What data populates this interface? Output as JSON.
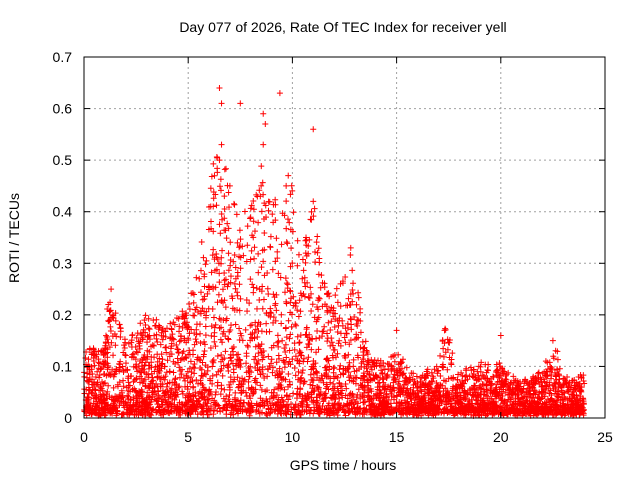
{
  "chart_data": {
    "type": "scatter",
    "title": "Day 077 of 2026, Rate Of TEC Index for receiver yell",
    "xlabel": "GPS time / hours",
    "ylabel": "ROTI / TECUs",
    "xlim": [
      0,
      25
    ],
    "ylim": [
      0,
      0.7
    ],
    "xticks": [
      0,
      5,
      10,
      15,
      20,
      25
    ],
    "yticks": [
      0,
      0.1,
      0.2,
      0.3,
      0.4,
      0.5,
      0.6,
      0.7
    ],
    "xtick_labels": [
      "0",
      "5",
      "10",
      "15",
      "20",
      "25"
    ],
    "ytick_labels": [
      "0",
      "0.1",
      "0.2",
      "0.3",
      "0.4",
      "0.5",
      "0.6",
      "0.7"
    ],
    "grid": true,
    "marker": "+",
    "color": "#ff0000",
    "series": [
      {
        "name": "ROTI",
        "envelope": [
          {
            "x": 0.0,
            "ymax": 0.12
          },
          {
            "x": 1.0,
            "ymax": 0.13
          },
          {
            "x": 1.2,
            "ymax": 0.25
          },
          {
            "x": 2.0,
            "ymax": 0.14
          },
          {
            "x": 3.0,
            "ymax": 0.19
          },
          {
            "x": 4.0,
            "ymax": 0.17
          },
          {
            "x": 5.0,
            "ymax": 0.21
          },
          {
            "x": 5.5,
            "ymax": 0.28
          },
          {
            "x": 6.0,
            "ymax": 0.45
          },
          {
            "x": 6.5,
            "ymax": 0.52
          },
          {
            "x": 7.0,
            "ymax": 0.45
          },
          {
            "x": 7.5,
            "ymax": 0.38
          },
          {
            "x": 8.0,
            "ymax": 0.4
          },
          {
            "x": 8.5,
            "ymax": 0.5
          },
          {
            "x": 9.0,
            "ymax": 0.43
          },
          {
            "x": 9.5,
            "ymax": 0.4
          },
          {
            "x": 10.0,
            "ymax": 0.45
          },
          {
            "x": 10.5,
            "ymax": 0.32
          },
          {
            "x": 11.0,
            "ymax": 0.42
          },
          {
            "x": 11.5,
            "ymax": 0.25
          },
          {
            "x": 12.0,
            "ymax": 0.22
          },
          {
            "x": 12.8,
            "ymax": 0.33
          },
          {
            "x": 13.5,
            "ymax": 0.15
          },
          {
            "x": 14.0,
            "ymax": 0.1
          },
          {
            "x": 15.0,
            "ymax": 0.12
          },
          {
            "x": 16.0,
            "ymax": 0.07
          },
          {
            "x": 17.0,
            "ymax": 0.1
          },
          {
            "x": 17.3,
            "ymax": 0.17
          },
          {
            "x": 18.0,
            "ymax": 0.08
          },
          {
            "x": 19.0,
            "ymax": 0.1
          },
          {
            "x": 20.0,
            "ymax": 0.09
          },
          {
            "x": 21.0,
            "ymax": 0.06
          },
          {
            "x": 22.0,
            "ymax": 0.08
          },
          {
            "x": 22.5,
            "ymax": 0.15
          },
          {
            "x": 23.0,
            "ymax": 0.07
          },
          {
            "x": 24.0,
            "ymax": 0.07
          }
        ],
        "outliers": [
          {
            "x": 6.5,
            "y": 0.64
          },
          {
            "x": 6.6,
            "y": 0.61
          },
          {
            "x": 7.5,
            "y": 0.61
          },
          {
            "x": 9.4,
            "y": 0.63
          },
          {
            "x": 8.6,
            "y": 0.59
          },
          {
            "x": 8.7,
            "y": 0.57
          },
          {
            "x": 8.6,
            "y": 0.53
          },
          {
            "x": 11.0,
            "y": 0.56
          },
          {
            "x": 6.6,
            "y": 0.53
          },
          {
            "x": 6.5,
            "y": 0.5
          },
          {
            "x": 8.5,
            "y": 0.45
          },
          {
            "x": 9.8,
            "y": 0.47
          },
          {
            "x": 9.7,
            "y": 0.45
          },
          {
            "x": 7.0,
            "y": 0.45
          },
          {
            "x": 6.2,
            "y": 0.41
          },
          {
            "x": 11.0,
            "y": 0.42
          },
          {
            "x": 12.8,
            "y": 0.33
          },
          {
            "x": 1.3,
            "y": 0.25
          },
          {
            "x": 15.0,
            "y": 0.17
          },
          {
            "x": 20.0,
            "y": 0.16
          },
          {
            "x": 22.5,
            "y": 0.15
          },
          {
            "x": 17.3,
            "y": 0.17
          }
        ]
      }
    ]
  }
}
